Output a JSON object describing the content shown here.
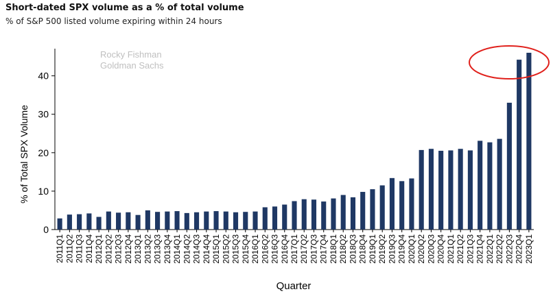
{
  "header": {
    "title": "Short-dated SPX volume as a % of total volume",
    "subtitle": "% of S&P 500 listed volume expiring within 24 hours"
  },
  "watermark": {
    "line1": "Rocky Fishman",
    "line2": "Goldman Sachs"
  },
  "colors": {
    "bar": "#1f3864",
    "highlight": "#e0201b",
    "watermark": "#bfbfbf"
  },
  "chart_data": {
    "type": "bar",
    "title": "Short-dated SPX volume as a % of total volume",
    "subtitle": "% of S&P 500 listed volume expiring within 24 hours",
    "xlabel": "Quarter",
    "ylabel": "% of Total SPX Volume",
    "ylim": [
      0,
      46
    ],
    "yticks": [
      0,
      10,
      20,
      30,
      40
    ],
    "grid": false,
    "categories": [
      "2011Q1",
      "2011Q2",
      "2011Q3",
      "2011Q4",
      "2012Q1",
      "2012Q2",
      "2012Q3",
      "2012Q4",
      "2013Q1",
      "2013Q2",
      "2013Q3",
      "2013Q4",
      "2014Q1",
      "2014Q2",
      "2014Q3",
      "2014Q4",
      "2015Q1",
      "2015Q2",
      "2015Q3",
      "2015Q4",
      "2016Q1",
      "2016Q2",
      "2016Q3",
      "2016Q4",
      "2017Q1",
      "2017Q2",
      "2017Q3",
      "2017Q4",
      "2018Q1",
      "2018Q2",
      "2018Q3",
      "2018Q4",
      "2019Q1",
      "2019Q2",
      "2019Q3",
      "2019Q4",
      "2020Q1",
      "2020Q2",
      "2020Q3",
      "2020Q4",
      "2021Q1",
      "2021Q2",
      "2021Q3",
      "2021Q4",
      "2022Q1",
      "2022Q2",
      "2022Q3",
      "2022Q4",
      "2023Q1"
    ],
    "values": [
      2.9,
      3.9,
      4.0,
      4.2,
      3.3,
      4.7,
      4.4,
      4.5,
      3.8,
      5.0,
      4.6,
      4.7,
      4.8,
      4.3,
      4.5,
      4.7,
      4.8,
      4.7,
      4.5,
      4.6,
      4.7,
      5.8,
      6.0,
      6.5,
      7.4,
      7.9,
      7.8,
      7.3,
      8.1,
      9.0,
      8.4,
      9.8,
      10.5,
      11.5,
      13.4,
      12.6,
      13.3,
      20.7,
      21.0,
      20.5,
      20.6,
      21.0,
      20.6,
      23.1,
      22.7,
      23.6,
      33.0,
      44.2,
      46.0
    ]
  }
}
